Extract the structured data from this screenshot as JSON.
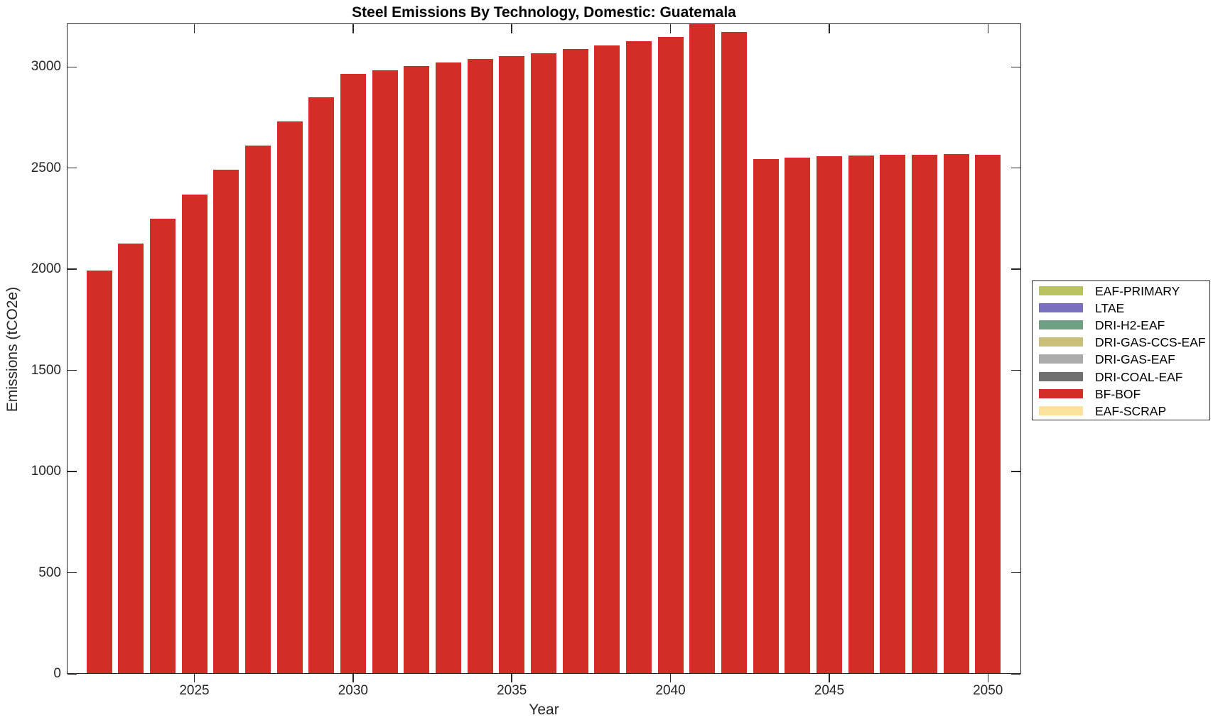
{
  "chart_data": {
    "type": "bar",
    "title": "Steel Emissions By Technology, Domestic: Guatemala",
    "xlabel": "Year",
    "ylabel": "Emissions (tCO2e)",
    "grid": false,
    "legend_position": "eastoutside",
    "ylim": [
      0,
      3215
    ],
    "yticks": [
      0,
      500,
      1000,
      1500,
      2000,
      2500,
      3000
    ],
    "xticks": [
      2025,
      2030,
      2035,
      2040,
      2045,
      2050
    ],
    "x": [
      2022,
      2023,
      2024,
      2025,
      2026,
      2027,
      2028,
      2029,
      2030,
      2031,
      2032,
      2033,
      2034,
      2035,
      2036,
      2037,
      2038,
      2039,
      2040,
      2041,
      2042,
      2043,
      2044,
      2045,
      2046,
      2047,
      2048,
      2049,
      2050
    ],
    "series": [
      {
        "name": "BF-BOF",
        "color": "#d22d26",
        "values": [
          1995,
          2128,
          2250,
          2372,
          2494,
          2613,
          2733,
          2853,
          2968,
          2988,
          3006,
          3024,
          3041,
          3057,
          3072,
          3092,
          3110,
          3131,
          3152,
          3220,
          3176,
          2547,
          2554,
          2560,
          2565,
          2568,
          2569,
          2571,
          2568
        ]
      }
    ],
    "legend": [
      {
        "label": "EAF-PRIMARY",
        "color": "#b9c360"
      },
      {
        "label": "LTAE",
        "color": "#7a6fbf"
      },
      {
        "label": "DRI-H2-EAF",
        "color": "#70a084"
      },
      {
        "label": "DRI-GAS-CCS-EAF",
        "color": "#c9bf79"
      },
      {
        "label": "DRI-GAS-EAF",
        "color": "#ababab"
      },
      {
        "label": "DRI-COAL-EAF",
        "color": "#6f6f6f"
      },
      {
        "label": "BF-BOF",
        "color": "#d22d26"
      },
      {
        "label": "EAF-SCRAP",
        "color": "#fae29c"
      }
    ]
  }
}
